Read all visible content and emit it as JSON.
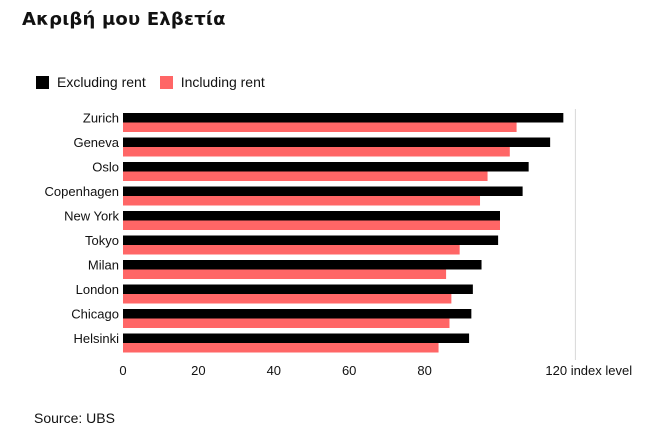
{
  "header": {
    "title": "Ακριβή μου Ελβετία"
  },
  "source": "Source: UBS",
  "colors": {
    "excluding": "#000000",
    "including": "#ff6666",
    "axis": "#d9d9d9"
  },
  "chart_data": {
    "type": "bar",
    "orientation": "horizontal",
    "title": "",
    "xlabel": "index level",
    "ylabel": "",
    "xlim": [
      0,
      120
    ],
    "xticks": [
      "0",
      "20",
      "40",
      "60",
      "80",
      "120 index level"
    ],
    "xtick_values": [
      0,
      20,
      40,
      60,
      80,
      120
    ],
    "categories": [
      "Zurich",
      "Geneva",
      "Oslo",
      "Copenhagen",
      "New York",
      "Tokyo",
      "Milan",
      "London",
      "Chicago",
      "Helsinki"
    ],
    "series": [
      {
        "name": "Excluding rent",
        "values": [
          116.8,
          113.3,
          107.6,
          106.0,
          100.0,
          99.5,
          95.1,
          92.8,
          92.4,
          91.8
        ]
      },
      {
        "name": "Including rent",
        "values": [
          104.4,
          102.6,
          96.7,
          94.7,
          100.0,
          89.3,
          85.7,
          87.1,
          86.6,
          83.7
        ]
      }
    ],
    "legend": "top-left",
    "grid": false
  }
}
